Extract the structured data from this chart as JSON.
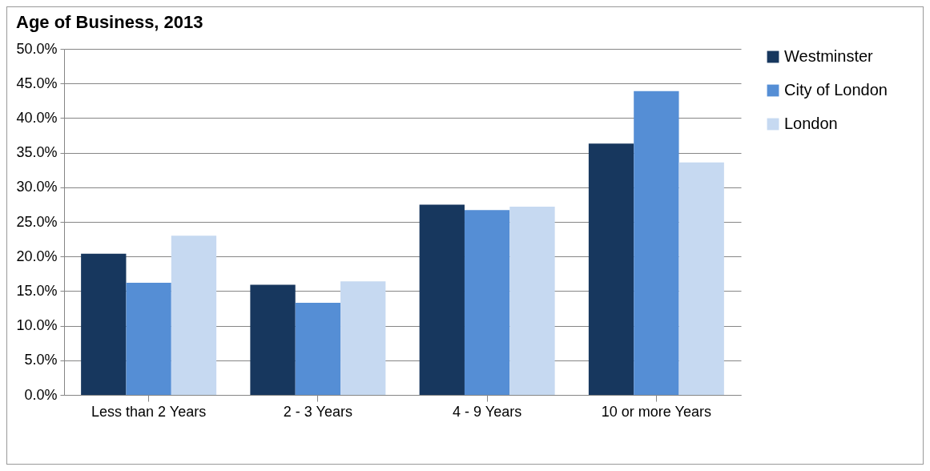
{
  "chart_data": {
    "type": "bar",
    "title": "Age of Business, 2013",
    "categories": [
      "Less than 2 Years",
      "2 - 3 Years",
      "4 - 9 Years",
      "10 or more Years"
    ],
    "series": [
      {
        "name": "Westminster",
        "color": "#17375e",
        "values": [
          20.4,
          15.9,
          27.5,
          36.3
        ]
      },
      {
        "name": "City of London",
        "color": "#558ed5",
        "values": [
          16.2,
          13.3,
          26.7,
          43.9
        ]
      },
      {
        "name": "London",
        "color": "#c6d9f1",
        "values": [
          23.0,
          16.4,
          27.2,
          33.6
        ]
      }
    ],
    "ylim": [
      0,
      50
    ],
    "yticks": [
      {
        "value": 0,
        "label": "0.0%"
      },
      {
        "value": 5,
        "label": "5.0%"
      },
      {
        "value": 10,
        "label": "10.0%"
      },
      {
        "value": 15,
        "label": "15.0%"
      },
      {
        "value": 20,
        "label": "20.0%"
      },
      {
        "value": 25,
        "label": "25.0%"
      },
      {
        "value": 30,
        "label": "30.0%"
      },
      {
        "value": 35,
        "label": "35.0%"
      },
      {
        "value": 40,
        "label": "40.0%"
      },
      {
        "value": 45,
        "label": "45.0%"
      },
      {
        "value": 50,
        "label": "50.0%"
      }
    ],
    "grid": "y",
    "legend": "right"
  }
}
